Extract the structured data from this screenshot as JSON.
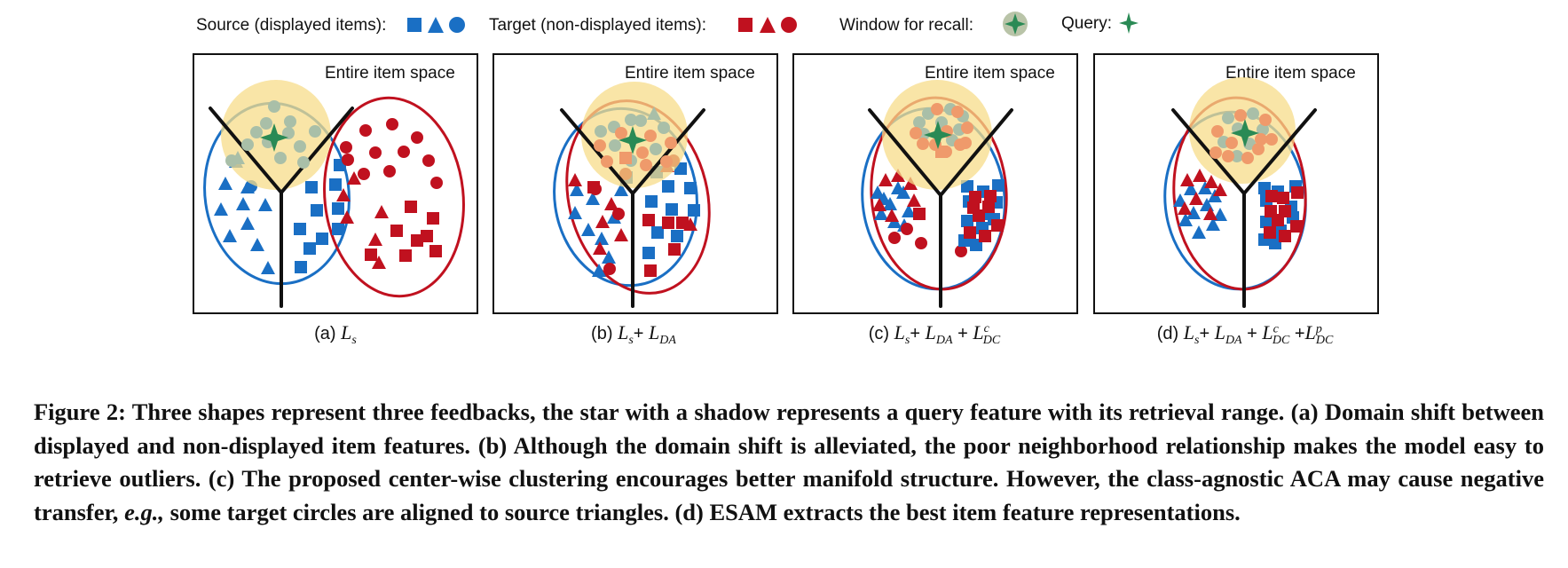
{
  "legend": {
    "source": "Source (displayed items):",
    "target": "Target (non-displayed items):",
    "window": "Window for recall:",
    "query": "Query:"
  },
  "colors": {
    "source_blue": "#1a6fc4",
    "target_red": "#c0111f",
    "query_green": "#2a8a55",
    "window_yellow": "#f7dc8a",
    "aligned_gray": "#a9bfa8",
    "aligned_orange": "#ef9a6b"
  },
  "panels": [
    {
      "id": "a",
      "space_label": "Entire item space",
      "sub_prefix": "(a)",
      "formula": "L_s"
    },
    {
      "id": "b",
      "space_label": "Entire item space",
      "sub_prefix": "(b)",
      "formula": "L_s + L_DA"
    },
    {
      "id": "c",
      "space_label": "Entire item space",
      "sub_prefix": "(c)",
      "formula": "L_s + L_DA + L_DC^c"
    },
    {
      "id": "d",
      "space_label": "Entire item space",
      "sub_prefix": "(d)",
      "formula": "L_s + L_DA + L_DC^c + L_DC^p"
    }
  ],
  "caption": {
    "s1": "Figure 2: Three shapes represent three feedbacks, the star with a shadow represents a query feature with its retrieval range. (a) Domain shift between displayed and non-displayed item features. (b) Although the domain shift is alleviated, the poor neighborhood relationship makes the model easy to retrieve outliers. (c) The proposed center-wise clustering encourages better manifold structure. However, the class-agnostic ACA may cause negative transfer, ",
    "eg": "e.g.,",
    "s2": " some target circles are aligned to source triangles. (d) ESAM extracts the best item feature representations."
  }
}
